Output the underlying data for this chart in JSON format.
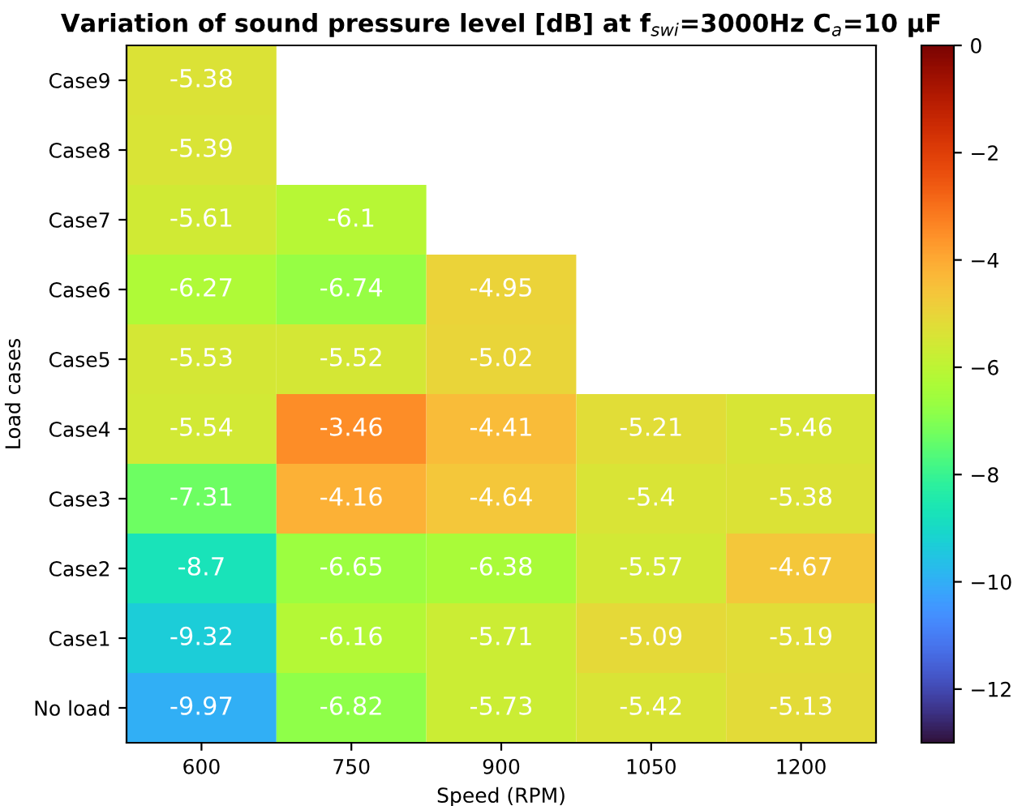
{
  "chart_data": {
    "type": "heatmap",
    "title": "Variation of sound pressure level [dB] at f$_{swi}$=3000Hz C$_{a}$=10 μF",
    "xlabel": "Speed (RPM)",
    "ylabel": "Load cases",
    "categories": [
      "600",
      "750",
      "900",
      "1050",
      "1200"
    ],
    "y_categories": [
      "Case9",
      "Case8",
      "Case7",
      "Case6",
      "Case5",
      "Case4",
      "Case3",
      "Case2",
      "Case1",
      "No load"
    ],
    "cells": [
      [
        -5.38,
        null,
        null,
        null,
        null
      ],
      [
        -5.39,
        null,
        null,
        null,
        null
      ],
      [
        -5.61,
        -6.1,
        null,
        null,
        null
      ],
      [
        -6.27,
        -6.74,
        -4.95,
        null,
        null
      ],
      [
        -5.53,
        -5.52,
        -5.02,
        null,
        null
      ],
      [
        -5.54,
        -3.46,
        -4.41,
        -5.21,
        -5.46
      ],
      [
        -7.31,
        -4.16,
        -4.64,
        -5.4,
        -5.38
      ],
      [
        -8.7,
        -6.65,
        -6.38,
        -5.57,
        -4.67
      ],
      [
        -9.32,
        -6.16,
        -5.71,
        -5.09,
        -5.19
      ],
      [
        -9.97,
        -6.82,
        -5.73,
        -5.42,
        -5.13
      ]
    ],
    "clim": [
      -13,
      0
    ],
    "cticks": [
      -12,
      -10,
      -8,
      -6,
      -4,
      -2,
      0
    ],
    "data_labels": true,
    "grid": false
  }
}
